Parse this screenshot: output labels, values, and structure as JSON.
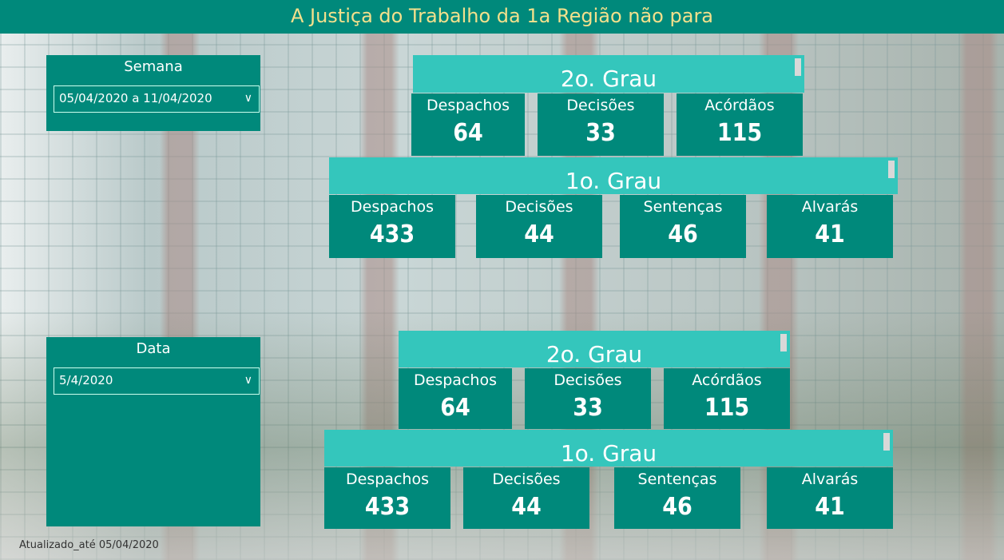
{
  "header": {
    "title": "A Justiça do Trabalho da 1a Região não para"
  },
  "filters": {
    "semana": {
      "label": "Semana",
      "value": "05/04/2020 a 11/04/2020"
    },
    "data": {
      "label": "Data",
      "value": "5/4/2020"
    }
  },
  "top": {
    "segundo": {
      "title": "2o. Grau",
      "cards": [
        {
          "label": "Despachos",
          "value": "64"
        },
        {
          "label": "Decisões",
          "value": "33"
        },
        {
          "label": "Acórdãos",
          "value": "115"
        }
      ]
    },
    "primeiro": {
      "title": "1o. Grau",
      "cards": [
        {
          "label": "Despachos",
          "value": "433"
        },
        {
          "label": "Decisões",
          "value": "44"
        },
        {
          "label": "Sentenças",
          "value": "46"
        },
        {
          "label": "Alvarás",
          "value": "41"
        }
      ]
    }
  },
  "bottom": {
    "segundo": {
      "title": "2o. Grau",
      "cards": [
        {
          "label": "Despachos",
          "value": "64"
        },
        {
          "label": "Decisões",
          "value": "33"
        },
        {
          "label": "Acórdãos",
          "value": "115"
        }
      ]
    },
    "primeiro": {
      "title": "1o. Grau",
      "cards": [
        {
          "label": "Despachos",
          "value": "433"
        },
        {
          "label": "Decisões",
          "value": "44"
        },
        {
          "label": "Sentenças",
          "value": "46"
        },
        {
          "label": "Alvarás",
          "value": "41"
        }
      ]
    }
  },
  "footer": {
    "text": "Atualizado_até 05/04/2020"
  },
  "colors": {
    "primary": "#00897b",
    "accent": "#34c6bc",
    "title": "#f3e08c"
  }
}
